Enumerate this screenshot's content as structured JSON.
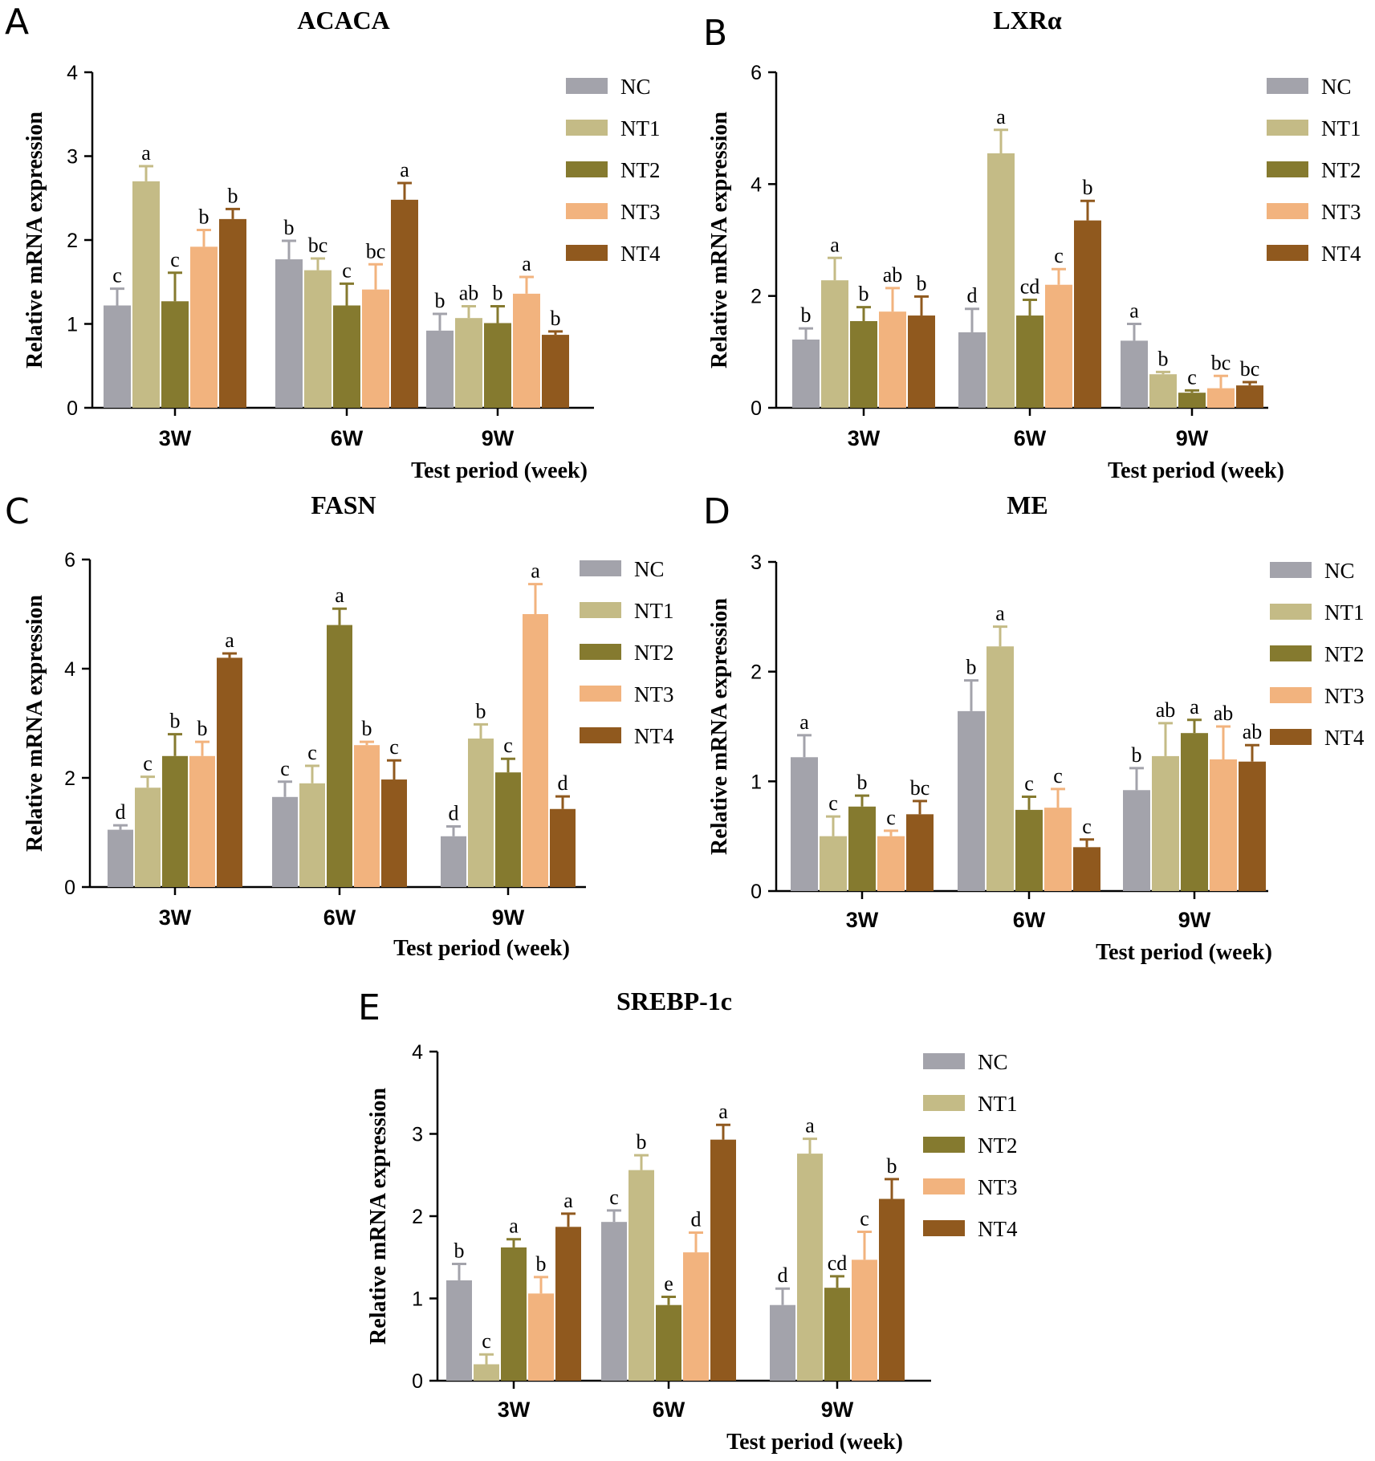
{
  "series_names": [
    "NC",
    "NT1",
    "NT2",
    "NT3",
    "NT4"
  ],
  "series_colors": [
    "#a3a3ab",
    "#c4bb86",
    "#857a2f",
    "#f2b37e",
    "#90591e"
  ],
  "categories": [
    "3W",
    "6W",
    "9W"
  ],
  "chart_data": [
    {
      "type": "bar",
      "panel": "A",
      "title": "ACACA",
      "xlabel": "Test period (week)",
      "ylabel": "Relative mRNA expression",
      "ylim": [
        0,
        4
      ],
      "yticks": [
        "0",
        "1",
        "2",
        "3",
        "4"
      ],
      "categories": [
        "3W",
        "6W",
        "9W"
      ],
      "series": [
        {
          "name": "NC",
          "values": [
            1.22,
            1.77,
            0.92
          ],
          "errors": [
            0.2,
            0.22,
            0.2
          ],
          "labels": [
            "c",
            "b",
            "b"
          ]
        },
        {
          "name": "NT1",
          "values": [
            2.7,
            1.64,
            1.07
          ],
          "errors": [
            0.18,
            0.14,
            0.14
          ],
          "labels": [
            "a",
            "bc",
            "ab"
          ]
        },
        {
          "name": "NT2",
          "values": [
            1.27,
            1.22,
            1.01
          ],
          "errors": [
            0.34,
            0.26,
            0.2
          ],
          "labels": [
            "c",
            "c",
            "b"
          ]
        },
        {
          "name": "NT3",
          "values": [
            1.92,
            1.41,
            1.36
          ],
          "errors": [
            0.2,
            0.3,
            0.2
          ],
          "labels": [
            "b",
            "bc",
            "a"
          ]
        },
        {
          "name": "NT4",
          "values": [
            2.25,
            2.48,
            0.87
          ],
          "errors": [
            0.12,
            0.2,
            0.04
          ],
          "labels": [
            "b",
            "a",
            "b"
          ]
        }
      ]
    },
    {
      "type": "bar",
      "panel": "B",
      "title": "LXRα",
      "xlabel": "Test period (week)",
      "ylabel": "Relative mRNA expression",
      "ylim": [
        0,
        6
      ],
      "yticks": [
        "0",
        "2",
        "4",
        "6"
      ],
      "categories": [
        "3W",
        "6W",
        "9W"
      ],
      "series": [
        {
          "name": "NC",
          "values": [
            1.22,
            1.35,
            1.2
          ],
          "errors": [
            0.2,
            0.42,
            0.3
          ],
          "labels": [
            "b",
            "d",
            "a"
          ]
        },
        {
          "name": "NT1",
          "values": [
            2.28,
            4.55,
            0.6
          ],
          "errors": [
            0.4,
            0.42,
            0.04
          ],
          "labels": [
            "a",
            "a",
            "b"
          ]
        },
        {
          "name": "NT2",
          "values": [
            1.55,
            1.65,
            0.27
          ],
          "errors": [
            0.25,
            0.28,
            0.04
          ],
          "labels": [
            "b",
            "cd",
            "c"
          ]
        },
        {
          "name": "NT3",
          "values": [
            1.72,
            2.2,
            0.35
          ],
          "errors": [
            0.42,
            0.28,
            0.22
          ],
          "labels": [
            "ab",
            "c",
            "bc"
          ]
        },
        {
          "name": "NT4",
          "values": [
            1.65,
            3.35,
            0.4
          ],
          "errors": [
            0.34,
            0.35,
            0.06
          ],
          "labels": [
            "b",
            "b",
            "bc"
          ]
        }
      ]
    },
    {
      "type": "bar",
      "panel": "C",
      "title": "FASN",
      "xlabel": "Test period (week)",
      "ylabel": "Relative mRNA expression",
      "ylim": [
        0,
        6
      ],
      "yticks": [
        "0",
        "2",
        "4",
        "6"
      ],
      "categories": [
        "3W",
        "6W",
        "9W"
      ],
      "series": [
        {
          "name": "NC",
          "values": [
            1.05,
            1.65,
            0.93
          ],
          "errors": [
            0.08,
            0.28,
            0.18
          ],
          "labels": [
            "d",
            "c",
            "d"
          ]
        },
        {
          "name": "NT1",
          "values": [
            1.82,
            1.9,
            2.72
          ],
          "errors": [
            0.2,
            0.32,
            0.26
          ],
          "labels": [
            "c",
            "c",
            "b"
          ]
        },
        {
          "name": "NT2",
          "values": [
            2.4,
            4.8,
            2.1
          ],
          "errors": [
            0.4,
            0.3,
            0.25
          ],
          "labels": [
            "b",
            "a",
            "c"
          ]
        },
        {
          "name": "NT3",
          "values": [
            2.4,
            2.6,
            5.0
          ],
          "errors": [
            0.26,
            0.06,
            0.55
          ],
          "labels": [
            "b",
            "b",
            "a"
          ]
        },
        {
          "name": "NT4",
          "values": [
            4.2,
            1.97,
            1.43
          ],
          "errors": [
            0.08,
            0.35,
            0.23
          ],
          "labels": [
            "a",
            "c",
            "d"
          ]
        }
      ]
    },
    {
      "type": "bar",
      "panel": "D",
      "title": "ME",
      "xlabel": "Test period (week)",
      "ylabel": "Relative mRNA expression",
      "ylim": [
        0,
        3
      ],
      "yticks": [
        "0",
        "1",
        "2",
        "3"
      ],
      "categories": [
        "3W",
        "6W",
        "9W"
      ],
      "series": [
        {
          "name": "NC",
          "values": [
            1.22,
            1.64,
            0.92
          ],
          "errors": [
            0.2,
            0.28,
            0.2
          ],
          "labels": [
            "a",
            "b",
            "b"
          ]
        },
        {
          "name": "NT1",
          "values": [
            0.5,
            2.23,
            1.23
          ],
          "errors": [
            0.18,
            0.18,
            0.3
          ],
          "labels": [
            "c",
            "a",
            "ab"
          ]
        },
        {
          "name": "NT2",
          "values": [
            0.77,
            0.74,
            1.44
          ],
          "errors": [
            0.1,
            0.12,
            0.12
          ],
          "labels": [
            "b",
            "c",
            "a"
          ]
        },
        {
          "name": "NT3",
          "values": [
            0.5,
            0.76,
            1.2
          ],
          "errors": [
            0.05,
            0.17,
            0.3
          ],
          "labels": [
            "c",
            "c",
            "ab"
          ]
        },
        {
          "name": "NT4",
          "values": [
            0.7,
            0.4,
            1.18
          ],
          "errors": [
            0.12,
            0.07,
            0.15
          ],
          "labels": [
            "bc",
            "c",
            "ab"
          ]
        }
      ]
    },
    {
      "type": "bar",
      "panel": "E",
      "title": "SREBP-1c",
      "xlabel": "Test period (week)",
      "ylabel": "Relative mRNA expression",
      "ylim": [
        0,
        4
      ],
      "yticks": [
        "0",
        "1",
        "2",
        "3",
        "4"
      ],
      "categories": [
        "3W",
        "6W",
        "9W"
      ],
      "series": [
        {
          "name": "NC",
          "values": [
            1.22,
            1.93,
            0.92
          ],
          "errors": [
            0.2,
            0.14,
            0.2
          ],
          "labels": [
            "b",
            "c",
            "d"
          ]
        },
        {
          "name": "NT1",
          "values": [
            0.2,
            2.56,
            2.76
          ],
          "errors": [
            0.12,
            0.18,
            0.18
          ],
          "labels": [
            "c",
            "b",
            "a"
          ]
        },
        {
          "name": "NT2",
          "values": [
            1.62,
            0.92,
            1.13
          ],
          "errors": [
            0.1,
            0.1,
            0.14
          ],
          "labels": [
            "a",
            "e",
            "cd"
          ]
        },
        {
          "name": "NT3",
          "values": [
            1.06,
            1.56,
            1.47
          ],
          "errors": [
            0.2,
            0.24,
            0.34
          ],
          "labels": [
            "b",
            "d",
            "c"
          ]
        },
        {
          "name": "NT4",
          "values": [
            1.87,
            2.93,
            2.21
          ],
          "errors": [
            0.16,
            0.18,
            0.24
          ],
          "labels": [
            "a",
            "a",
            "b"
          ]
        }
      ]
    }
  ]
}
